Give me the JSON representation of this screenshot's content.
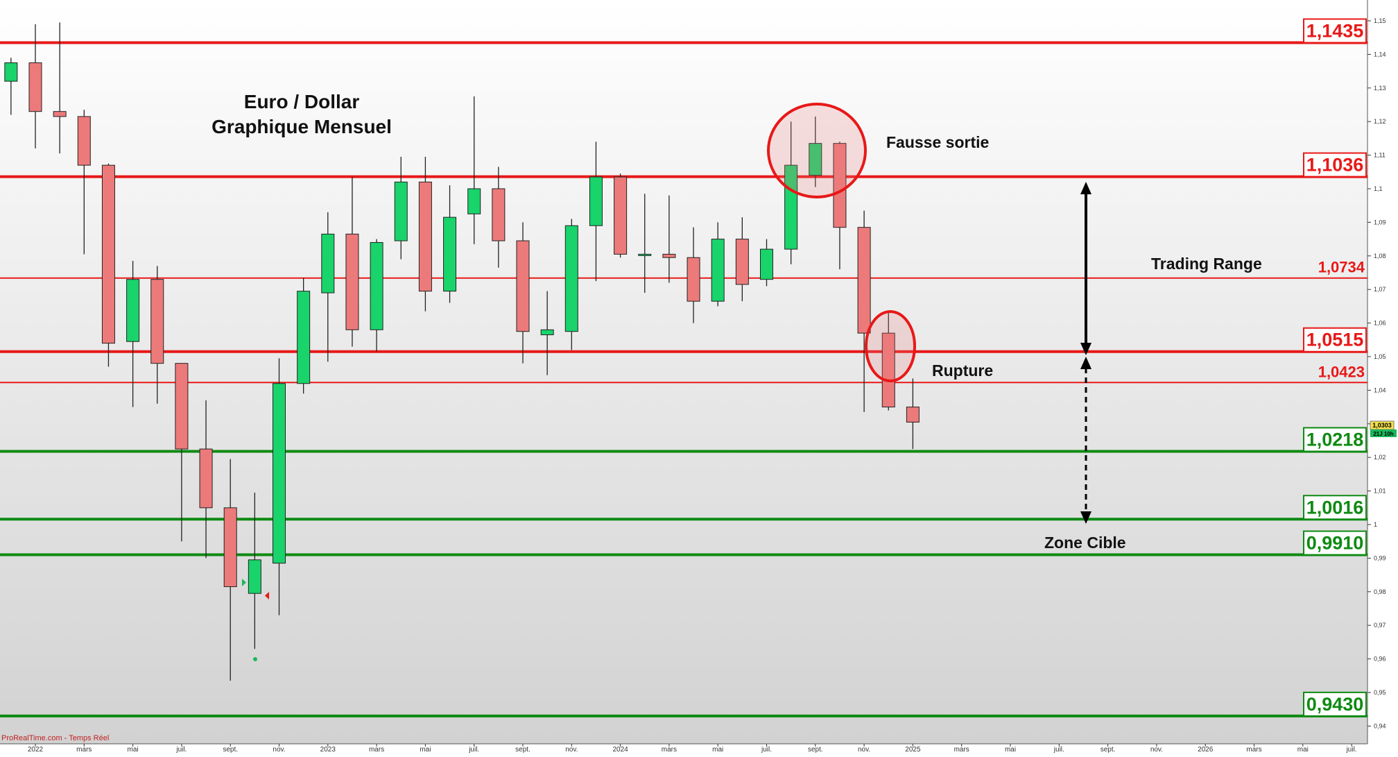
{
  "chart_data": {
    "type": "candlestick",
    "title": [
      "Euro / Dollar",
      "Graphique Mensuel"
    ],
    "source_label": "ProRealTime.com - Temps Réel",
    "ylim": [
      0.935,
      1.153
    ],
    "y_ticks": [
      "1,15",
      "1,14",
      "1,13",
      "1,12",
      "1,11",
      "1,1",
      "1,09",
      "1,08",
      "1,07",
      "1,06",
      "1,05",
      "1,04",
      "1,03",
      "1,02",
      "1,01",
      "1",
      "0,99",
      "0,98",
      "0,97",
      "0,96",
      "0,95",
      "0,94"
    ],
    "x_labels": [
      {
        "label": "2022",
        "m": 0
      },
      {
        "label": "mars",
        "m": 2
      },
      {
        "label": "mai",
        "m": 4
      },
      {
        "label": "juil.",
        "m": 6
      },
      {
        "label": "sept.",
        "m": 8
      },
      {
        "label": "nov.",
        "m": 10
      },
      {
        "label": "2023",
        "m": 12
      },
      {
        "label": "mars",
        "m": 14
      },
      {
        "label": "mai",
        "m": 16
      },
      {
        "label": "juil.",
        "m": 18
      },
      {
        "label": "sept.",
        "m": 20
      },
      {
        "label": "nov.",
        "m": 22
      },
      {
        "label": "2024",
        "m": 24
      },
      {
        "label": "mars",
        "m": 26
      },
      {
        "label": "mai",
        "m": 28
      },
      {
        "label": "juil.",
        "m": 30
      },
      {
        "label": "sept.",
        "m": 32
      },
      {
        "label": "nov.",
        "m": 34
      },
      {
        "label": "2025",
        "m": 36
      },
      {
        "label": "mars",
        "m": 38
      },
      {
        "label": "mai",
        "m": 40
      },
      {
        "label": "juil.",
        "m": 42
      },
      {
        "label": "sept.",
        "m": 44
      },
      {
        "label": "nov.",
        "m": 46
      },
      {
        "label": "2026",
        "m": 48
      },
      {
        "label": "mars",
        "m": 50
      },
      {
        "label": "mai",
        "m": 52
      },
      {
        "label": "juil.",
        "m": 54
      }
    ],
    "candles": [
      {
        "m": -1,
        "o": 1.132,
        "h": 1.139,
        "l": 1.122,
        "c": 1.1375
      },
      {
        "m": 0,
        "o": 1.1375,
        "h": 1.149,
        "l": 1.112,
        "c": 1.123
      },
      {
        "m": 1,
        "o": 1.123,
        "h": 1.1495,
        "l": 1.1105,
        "c": 1.1215
      },
      {
        "m": 2,
        "o": 1.1215,
        "h": 1.1235,
        "l": 1.0805,
        "c": 1.107
      },
      {
        "m": 3,
        "o": 1.107,
        "h": 1.1075,
        "l": 1.047,
        "c": 1.054
      },
      {
        "m": 4,
        "o": 1.0545,
        "h": 1.0785,
        "l": 1.035,
        "c": 1.073
      },
      {
        "m": 5,
        "o": 1.073,
        "h": 1.077,
        "l": 1.036,
        "c": 1.048
      },
      {
        "m": 6,
        "o": 1.048,
        "h": 1.048,
        "l": 0.995,
        "c": 1.0225
      },
      {
        "m": 7,
        "o": 1.0225,
        "h": 1.037,
        "l": 0.99,
        "c": 1.005
      },
      {
        "m": 8,
        "o": 1.005,
        "h": 1.0195,
        "l": 0.9535,
        "c": 0.9815
      },
      {
        "m": 9,
        "o": 0.9795,
        "h": 1.0095,
        "l": 0.963,
        "c": 0.9895
      },
      {
        "m": 10,
        "o": 0.9885,
        "h": 1.0495,
        "l": 0.973,
        "c": 1.042
      },
      {
        "m": 11,
        "o": 1.042,
        "h": 1.0735,
        "l": 1.039,
        "c": 1.0695
      },
      {
        "m": 12,
        "o": 1.069,
        "h": 1.093,
        "l": 1.0485,
        "c": 1.0865
      },
      {
        "m": 13,
        "o": 1.0865,
        "h": 1.1035,
        "l": 1.053,
        "c": 1.058
      },
      {
        "m": 14,
        "o": 1.058,
        "h": 1.085,
        "l": 1.0515,
        "c": 1.084
      },
      {
        "m": 15,
        "o": 1.0845,
        "h": 1.1095,
        "l": 1.079,
        "c": 1.102
      },
      {
        "m": 16,
        "o": 1.102,
        "h": 1.1095,
        "l": 1.0635,
        "c": 1.0695
      },
      {
        "m": 17,
        "o": 1.0695,
        "h": 1.101,
        "l": 1.066,
        "c": 1.0915
      },
      {
        "m": 18,
        "o": 1.0925,
        "h": 1.1275,
        "l": 1.0835,
        "c": 1.1
      },
      {
        "m": 19,
        "o": 1.1,
        "h": 1.1065,
        "l": 1.0765,
        "c": 1.0845
      },
      {
        "m": 20,
        "o": 1.0845,
        "h": 1.09,
        "l": 1.048,
        "c": 1.0575
      },
      {
        "m": 21,
        "o": 1.0565,
        "h": 1.0695,
        "l": 1.0445,
        "c": 1.058
      },
      {
        "m": 22,
        "o": 1.0575,
        "h": 1.091,
        "l": 1.052,
        "c": 1.089
      },
      {
        "m": 23,
        "o": 1.089,
        "h": 1.114,
        "l": 1.0725,
        "c": 1.1035
      },
      {
        "m": 24,
        "o": 1.1035,
        "h": 1.1045,
        "l": 1.0795,
        "c": 1.0805
      },
      {
        "m": 25,
        "o": 1.0805,
        "h": 1.0985,
        "l": 1.069,
        "c": 1.0805
      },
      {
        "m": 26,
        "o": 1.0805,
        "h": 1.098,
        "l": 1.072,
        "c": 1.0795
      },
      {
        "m": 27,
        "o": 1.0795,
        "h": 1.0885,
        "l": 1.06,
        "c": 1.0665
      },
      {
        "m": 28,
        "o": 1.0665,
        "h": 1.09,
        "l": 1.065,
        "c": 1.085
      },
      {
        "m": 29,
        "o": 1.085,
        "h": 1.0915,
        "l": 1.0665,
        "c": 1.0715
      },
      {
        "m": 30,
        "o": 1.073,
        "h": 1.085,
        "l": 1.071,
        "c": 1.082
      },
      {
        "m": 31,
        "o": 1.082,
        "h": 1.12,
        "l": 1.0775,
        "c": 1.107
      },
      {
        "m": 32,
        "o": 1.104,
        "h": 1.1215,
        "l": 1.1005,
        "c": 1.1135
      },
      {
        "m": 33,
        "o": 1.1135,
        "h": 1.114,
        "l": 1.076,
        "c": 1.0885
      },
      {
        "m": 34,
        "o": 1.0885,
        "h": 1.0935,
        "l": 1.0335,
        "c": 1.057
      },
      {
        "m": 35,
        "o": 1.057,
        "h": 1.063,
        "l": 1.034,
        "c": 1.035
      },
      {
        "m": 36,
        "o": 1.035,
        "h": 1.0435,
        "l": 1.0225,
        "c": 1.0305
      }
    ],
    "levels": [
      {
        "value": 1.1435,
        "label": "1,1435",
        "color": "#e81818",
        "width": 4,
        "label_style": "box"
      },
      {
        "value": 1.1036,
        "label": "1,1036",
        "color": "#e81818",
        "width": 4,
        "label_style": "box"
      },
      {
        "value": 1.0734,
        "label": "1,0734",
        "color": "#e81818",
        "width": 2,
        "label_style": "text"
      },
      {
        "value": 1.0515,
        "label": "1,0515",
        "color": "#e81818",
        "width": 4,
        "label_style": "box"
      },
      {
        "value": 1.0423,
        "label": "1,0423",
        "color": "#e81818",
        "width": 2,
        "label_style": "text"
      },
      {
        "value": 1.0218,
        "label": "1,0218",
        "color": "#0e8a12",
        "width": 4,
        "label_style": "box"
      },
      {
        "value": 1.0016,
        "label": "1,0016",
        "color": "#0e8a12",
        "width": 4,
        "label_style": "box"
      },
      {
        "value": 0.991,
        "label": "0,9910",
        "color": "#0e8a12",
        "width": 4,
        "label_style": "box"
      },
      {
        "value": 0.943,
        "label": "0,9430",
        "color": "#0e8a12",
        "width": 4,
        "label_style": "box"
      }
    ],
    "annotations": {
      "fausse_sortie": "Fausse sortie",
      "trading_range": "Trading Range",
      "rupture": "Rupture",
      "zone_cible": "Zone Cible"
    },
    "price_tag": {
      "value": "1,0303",
      "sub": "21J 10h",
      "y": 1.0303
    }
  },
  "colors": {
    "bull": "#19d36b",
    "bear": "#ec7a7a",
    "resistance": "#e81818",
    "support": "#0e8a12"
  }
}
